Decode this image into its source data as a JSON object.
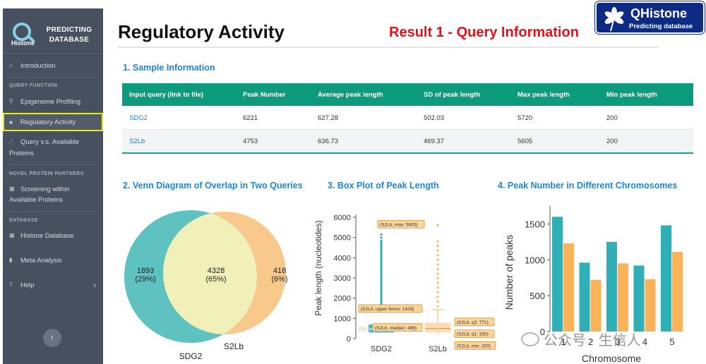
{
  "sidebar": {
    "brand": {
      "logo_word": "Histone",
      "line1": "PREDICTING",
      "line2": "DATABASE"
    },
    "items": {
      "introduction": "Introduction",
      "section_query": "QUERY FUNCTION",
      "epigenome": "Epigenome Profiling",
      "regulatory": "Regulatory Activity",
      "query_vs_1": "Query v.s. Available",
      "query_vs_2": "Proteins",
      "section_novel": "NOVEL PROTEIN PARTNERS",
      "screening_1": "Screening within",
      "screening_2": "Available Proteins",
      "section_db": "DATABASE",
      "histone_db": "Histone Database",
      "meta": "Meta Analysis",
      "help": "Help"
    }
  },
  "header": {
    "title": "Regulatory Activity",
    "annotation": "Result 1 - Query Information",
    "logo_name": "QHistone",
    "logo_sub": "Predicting database"
  },
  "sections": {
    "s1": "1. Sample Information",
    "s2": "2. Venn Diagram of Overlap in Two Queries",
    "s3": "3. Box Plot of Peak Length",
    "s4": "4. Peak Number in Different Chromosomes"
  },
  "table": {
    "headers": [
      "Input query (link to file)",
      "Peak Number",
      "Average peak length",
      "SD of peak length",
      "Max peak length",
      "Min peak length"
    ],
    "rows": [
      [
        "SDG2",
        "6221",
        "627.28",
        "502.03",
        "5720",
        "200"
      ],
      [
        "S2Lb",
        "4753",
        "636.73",
        "469.37",
        "5605",
        "200"
      ]
    ]
  },
  "venn": {
    "left_count": "1893",
    "left_pct": "(29%)",
    "mid_count": "4328",
    "mid_pct": "(65%)",
    "right_count": "418",
    "right_pct": "(6%)",
    "label_a": "SDG2",
    "label_b": "S2Lb",
    "colors": {
      "a": "#5ec3c0",
      "b": "#f8c98a",
      "overlap": "#f1f0b8"
    }
  },
  "chart_data": [
    {
      "type": "box",
      "ylabel": "Peak length (nucleotides)",
      "categories": [
        "SDG2",
        "S2Lb"
      ],
      "ylim": [
        0,
        6000
      ],
      "yticks": [
        0,
        1000,
        2000,
        3000,
        4000,
        5000,
        6000
      ],
      "series": [
        {
          "name": "SDG2",
          "color": "#30afb7"
        },
        {
          "name": "S2Lb",
          "color": "#fbb35a",
          "stats": {
            "max": 5605,
            "upper_fence": 1429,
            "q3": 771,
            "median": 496,
            "q1": 330,
            "min": 200
          }
        }
      ],
      "annotations": [
        "(S2Lb, max: 5605)",
        "(S2Lb, upper fence: 1429)",
        "(S2Lb, q3: 771)",
        "(S2Lb, median: 496)",
        "(S2Lb, q1: 330)",
        "(S2Lb, min: 200)"
      ],
      "partial_label": "S2Lb"
    },
    {
      "type": "bar",
      "xlabel": "Chromosome",
      "ylabel": "Number of peaks",
      "categories": [
        "1",
        "2",
        "3",
        "4",
        "5"
      ],
      "ylim": [
        0,
        1750
      ],
      "yticks": [
        0,
        500,
        1000,
        1500
      ],
      "series": [
        {
          "name": "SDG2",
          "color": "#30afb7",
          "values": [
            1600,
            960,
            1250,
            920,
            1480
          ]
        },
        {
          "name": "S2Lb",
          "color": "#fbb35a",
          "values": [
            1230,
            720,
            950,
            730,
            1110
          ]
        }
      ]
    }
  ],
  "watermark": "公众号 · 生信人"
}
